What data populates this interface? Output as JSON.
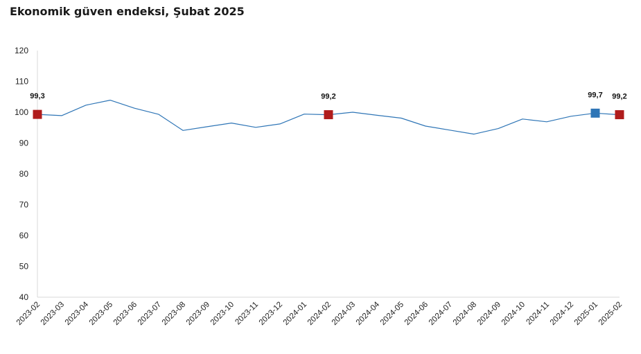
{
  "chart_data": {
    "type": "line",
    "title": "Ekonomik güven endeksi, Şubat 2025",
    "xlabel": "",
    "ylabel": "",
    "ylim": [
      40,
      120
    ],
    "yticks": [
      40,
      50,
      60,
      70,
      80,
      90,
      100,
      110,
      120
    ],
    "grid": false,
    "categories": [
      "2023-02",
      "2023-03",
      "2023-04",
      "2023-05",
      "2023-06",
      "2023-07",
      "2023-08",
      "2023-09",
      "2023-10",
      "2023-11",
      "2023-12",
      "2024-01",
      "2024-02",
      "2024-03",
      "2024-04",
      "2024-05",
      "2024-06",
      "2024-07",
      "2024-08",
      "2024-09",
      "2024-10",
      "2024-11",
      "2024-12",
      "2025-01",
      "2025-02"
    ],
    "series": [
      {
        "values": [
          99.3,
          98.9,
          102.3,
          103.9,
          101.3,
          99.3,
          94.1,
          95.3,
          96.5,
          95.1,
          96.2,
          99.4,
          99.2,
          100.0,
          99.0,
          98.1,
          95.5,
          94.2,
          92.9,
          94.7,
          97.8,
          96.9,
          98.7,
          99.7,
          99.2
        ],
        "color": "#2e75b6"
      }
    ],
    "highlights": [
      {
        "index": 0,
        "label": "99,3",
        "color": "#b01c1c"
      },
      {
        "index": 12,
        "label": "99,2",
        "color": "#b01c1c"
      },
      {
        "index": 23,
        "label": "99,7",
        "color": "#2e75b6"
      },
      {
        "index": 24,
        "label": "99,2",
        "color": "#b01c1c"
      }
    ]
  }
}
